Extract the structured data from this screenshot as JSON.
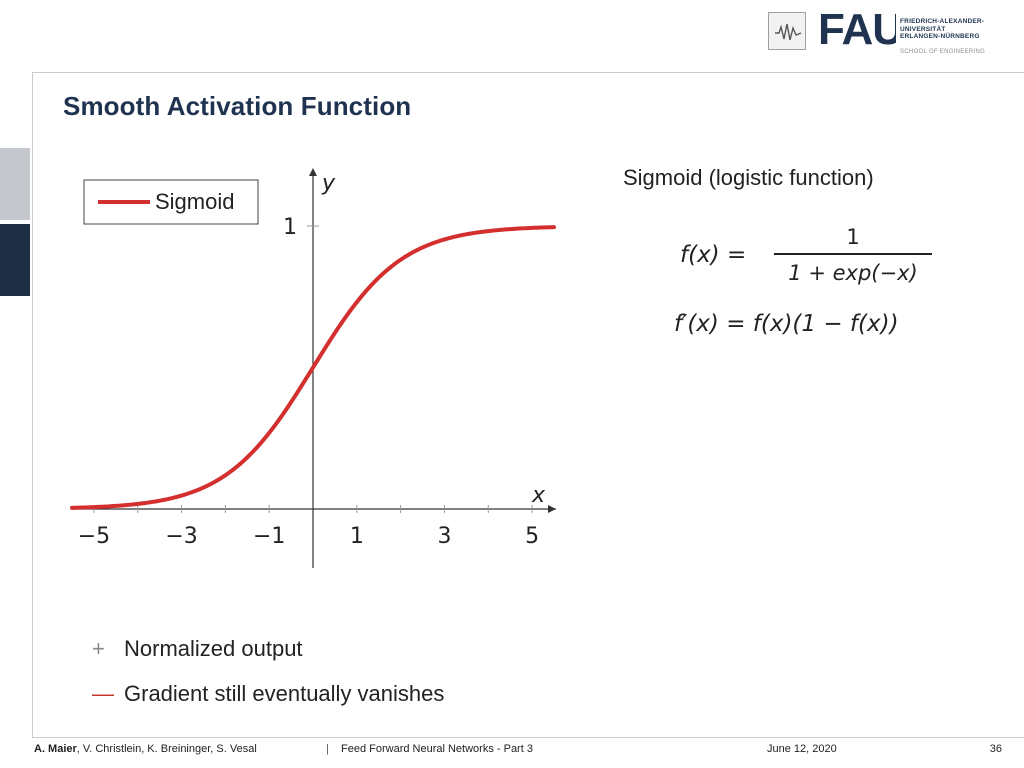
{
  "header": {
    "logo_text": "FAU",
    "university_lines": [
      "FRIEDRICH-ALEXANDER-",
      "UNIVERSITÄT",
      "ERLANGEN-NÜRNBERG"
    ],
    "school": "SCHOOL OF ENGINEERING"
  },
  "slide": {
    "title": "Smooth Activation Function"
  },
  "chart_data": {
    "type": "line",
    "title": "",
    "xlabel": "x",
    "ylabel": "y",
    "xlim": [
      -5.5,
      5.5
    ],
    "ylim": [
      -0.1,
      1.1
    ],
    "xticks": [
      -5,
      -3,
      -1,
      1,
      3,
      5
    ],
    "xtick_labels": [
      "−5",
      "−3",
      "−1",
      "1",
      "3",
      "5"
    ],
    "yticks": [
      1
    ],
    "ytick_labels": [
      "1"
    ],
    "legend": {
      "position": "top-left",
      "entries": [
        "Sigmoid"
      ]
    },
    "series": [
      {
        "name": "Sigmoid",
        "color": "#d32f2f",
        "x": [
          -5.5,
          -5,
          -4.5,
          -4,
          -3.5,
          -3,
          -2.5,
          -2,
          -1.5,
          -1,
          -0.5,
          0,
          0.5,
          1,
          1.5,
          2,
          2.5,
          3,
          3.5,
          4,
          4.5,
          5,
          5.5
        ],
        "y": [
          0.004,
          0.007,
          0.011,
          0.018,
          0.029,
          0.047,
          0.076,
          0.119,
          0.182,
          0.269,
          0.378,
          0.5,
          0.622,
          0.731,
          0.818,
          0.881,
          0.924,
          0.953,
          0.971,
          0.982,
          0.989,
          0.993,
          0.996
        ]
      }
    ]
  },
  "formulas": {
    "heading": "Sigmoid (logistic function)",
    "f_lhs": "f(x) =",
    "f_num": "1",
    "f_den": "1 + exp(−x)",
    "fprime": "f′(x) = f(x)(1 − f(x))"
  },
  "bullets": [
    {
      "mark": "+",
      "text": "Normalized output"
    },
    {
      "mark": "—",
      "text": "Gradient still eventually vanishes"
    }
  ],
  "footer": {
    "author_lead": "A. Maier",
    "authors_rest": ", V. Christlein, K. Breininger, S. Vesal",
    "separator": "|",
    "lecture": "Feed Forward Neural Networks - Part 3",
    "date": "June 12, 2020",
    "page": "36"
  }
}
